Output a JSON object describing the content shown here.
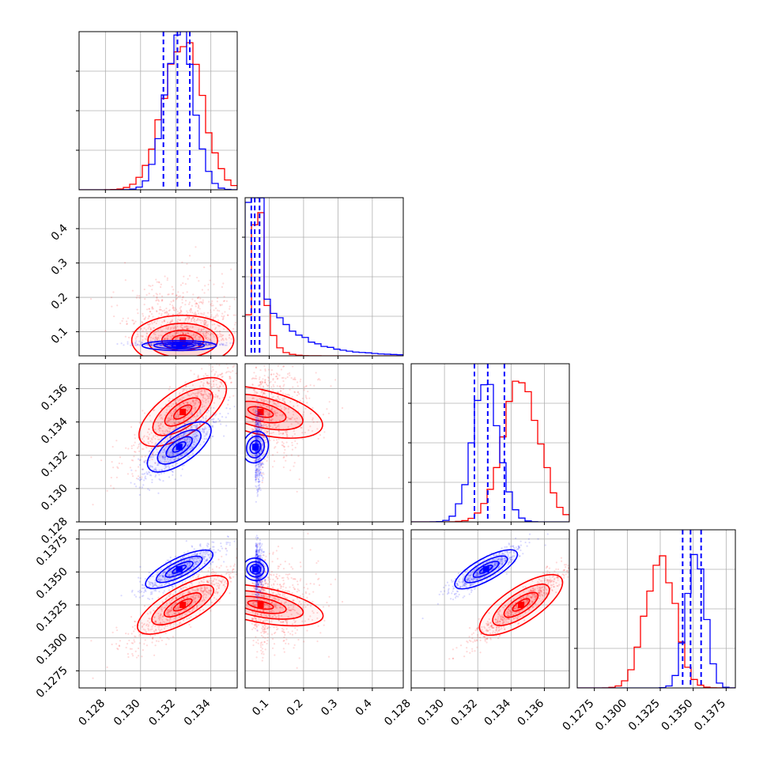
{
  "colors": {
    "blue": "#0000ff",
    "red": "#ff0000",
    "grid": "#b0b0b0",
    "frame": "#000000"
  },
  "chart_data": {
    "type": "corner-plot",
    "grid": true,
    "x_tick_labels": [
      [
        "0.128",
        "0.130",
        "0.132",
        "0.134"
      ],
      [
        "0.1",
        "0.2",
        "0.3",
        "0.4"
      ],
      [
        "0.128",
        "0.130",
        "0.132",
        "0.134",
        "0.136"
      ],
      [
        "0.1275",
        "0.1300",
        "0.1325",
        "0.1350",
        "0.1375"
      ]
    ],
    "y_tick_labels": {
      "row1": [
        "0.1",
        "0.2",
        "0.3",
        "0.4"
      ],
      "row2": [
        "0.128",
        "0.130",
        "0.132",
        "0.134",
        "0.136"
      ],
      "row3": [
        "0.1275",
        "0.1300",
        "0.1325",
        "0.1350",
        "0.1375"
      ]
    },
    "parameters": [
      {
        "range": [
          0.1265,
          0.1355
        ],
        "ticks": [
          0.128,
          0.13,
          0.132,
          0.134
        ]
      },
      {
        "range": [
          0.03,
          0.49
        ],
        "ticks": [
          0.1,
          0.2,
          0.3,
          0.4
        ]
      },
      {
        "range": [
          0.128,
          0.1375
        ],
        "ticks": [
          0.128,
          0.13,
          0.132,
          0.134,
          0.136
        ]
      },
      {
        "range": [
          0.1262,
          0.1382
        ],
        "ticks": [
          0.1275,
          0.13,
          0.1325,
          0.135,
          0.1375
        ]
      }
    ],
    "series": [
      {
        "color": "#0000ff",
        "means": [
          0.1322,
          0.06,
          0.1325,
          0.1352
        ],
        "sigmas": [
          0.0008,
          0.012,
          0.0008,
          0.0007
        ],
        "hist_peaks": [
          1.0,
          1.0,
          0.9,
          0.91
        ],
        "quantiles": [
          [
            0.1313,
            0.1321,
            0.1328
          ],
          [
            0.048,
            0.058,
            0.072
          ],
          [
            0.1318,
            0.1326,
            0.1336
          ],
          [
            0.1342,
            0.1348,
            0.1356
          ]
        ]
      },
      {
        "color": "#ff0000",
        "means": [
          0.1324,
          0.075,
          0.1346,
          0.1325
        ],
        "sigmas": [
          0.0011,
          0.06,
          0.0011,
          0.0011
        ],
        "hist_peaks": [
          0.95,
          0.9,
          0.89,
          0.85
        ],
        "quantiles": []
      }
    ],
    "correlations": {
      "blue": {
        "0-2": 0.85,
        "0-3": 0.85,
        "2-3": 0.9,
        "1-2": -0.1,
        "1-3": -0.1
      },
      "red": {
        "0-2": 0.85,
        "0-3": 0.85,
        "2-3": 0.95,
        "1-2": -0.3,
        "1-3": -0.3
      }
    }
  }
}
